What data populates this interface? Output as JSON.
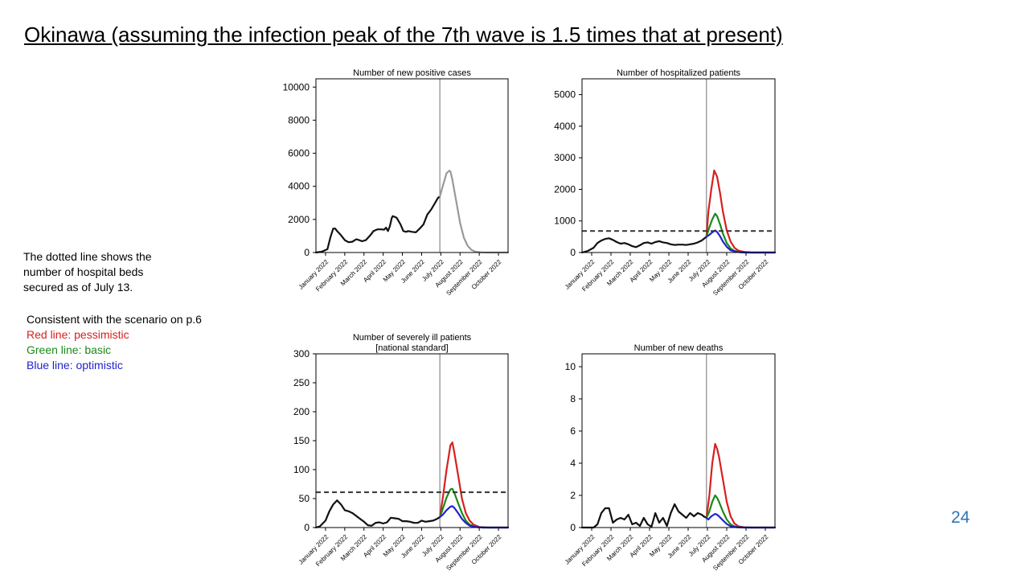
{
  "slide": {
    "title": "Okinawa (assuming the infection peak of the 7th wave is 1.5 times that at present)",
    "page_number": "24"
  },
  "note": {
    "lines": [
      "The dotted line shows the",
      "number of hospital beds",
      "secured as of July 13."
    ]
  },
  "legend": {
    "intro": "Consistent with the scenario on p.6",
    "red": "Red line: pessimistic",
    "green": "Green line: basic",
    "blue": "Blue line: optimistic",
    "colors": {
      "red": "#d62020",
      "green": "#1a8a1a",
      "blue": "#2222cc",
      "actual": "#111111",
      "projection_gray": "#999999"
    }
  },
  "chart_data": [
    {
      "id": "new-positive-cases",
      "type": "line",
      "title": "Number of new positive cases",
      "xlabel": "",
      "ylabel": "",
      "ylim": [
        0,
        10500
      ],
      "yticks": [
        0,
        2000,
        4000,
        6000,
        8000,
        10000
      ],
      "xlim": [
        0,
        10
      ],
      "xticks": [
        "January 2022",
        "February 2022",
        "March 2022",
        "April 2022",
        "May 2022",
        "June 2022",
        "July 2022",
        "August 2022",
        "September 2022",
        "October 2022"
      ],
      "today": 6.45,
      "bed_line": null,
      "series": [
        {
          "name": "actual",
          "color": "#111111",
          "x": [
            0,
            0.3,
            0.6,
            0.75,
            0.9,
            1.0,
            1.1,
            1.3,
            1.5,
            1.7,
            1.9,
            2.1,
            2.25,
            2.4,
            2.6,
            2.8,
            3.0,
            3.2,
            3.4,
            3.55,
            3.65,
            3.75,
            3.85,
            3.95,
            4.0,
            4.2,
            4.4,
            4.55,
            4.7,
            4.8,
            5.0,
            5.2,
            5.4,
            5.6,
            5.8,
            6.0,
            6.2,
            6.35,
            6.45
          ],
          "y": [
            0,
            50,
            200,
            900,
            1450,
            1450,
            1300,
            1050,
            750,
            620,
            650,
            800,
            750,
            680,
            750,
            1000,
            1300,
            1400,
            1400,
            1380,
            1500,
            1300,
            1600,
            2100,
            2200,
            2100,
            1700,
            1300,
            1250,
            1300,
            1250,
            1220,
            1450,
            1700,
            2300,
            2600,
            3000,
            3300,
            3400
          ]
        },
        {
          "name": "projection",
          "color": "#999999",
          "x": [
            6.45,
            6.6,
            6.8,
            6.95,
            7.0,
            7.1,
            7.3,
            7.5,
            7.7,
            7.9,
            8.1,
            8.3,
            8.6,
            9.0,
            10.0
          ],
          "y": [
            3400,
            4000,
            4800,
            4950,
            4900,
            4400,
            3100,
            1800,
            900,
            400,
            150,
            50,
            10,
            0,
            0
          ]
        }
      ]
    },
    {
      "id": "hospitalized-patients",
      "type": "line",
      "title": "Number of hospitalized patients",
      "xlabel": "",
      "ylabel": "",
      "ylim": [
        0,
        5500
      ],
      "yticks": [
        0,
        1000,
        2000,
        3000,
        4000,
        5000
      ],
      "xlim": [
        0,
        10
      ],
      "xticks": [
        "January 2022",
        "February 2022",
        "March 2022",
        "April 2022",
        "May 2022",
        "June 2022",
        "July 2022",
        "August 2022",
        "September 2022",
        "October 2022"
      ],
      "today": 6.45,
      "bed_line": 680,
      "series": [
        {
          "name": "actual",
          "color": "#111111",
          "x": [
            0,
            0.3,
            0.6,
            0.8,
            1.0,
            1.2,
            1.4,
            1.6,
            1.8,
            2.0,
            2.2,
            2.4,
            2.6,
            2.8,
            3.0,
            3.2,
            3.4,
            3.6,
            3.8,
            4.0,
            4.2,
            4.4,
            4.6,
            4.8,
            5.0,
            5.2,
            5.4,
            5.6,
            5.8,
            6.0,
            6.2,
            6.45
          ],
          "y": [
            0,
            50,
            150,
            300,
            380,
            430,
            450,
            400,
            330,
            280,
            300,
            260,
            200,
            170,
            230,
            300,
            320,
            280,
            330,
            360,
            320,
            300,
            260,
            240,
            250,
            250,
            240,
            260,
            280,
            320,
            380,
            500
          ]
        },
        {
          "name": "pessimistic",
          "color": "#d62020",
          "x": [
            6.45,
            6.55,
            6.7,
            6.85,
            7.0,
            7.15,
            7.3,
            7.5,
            7.7,
            7.9,
            8.1,
            8.4,
            8.8,
            10.0
          ],
          "y": [
            500,
            1300,
            2000,
            2600,
            2400,
            1900,
            1300,
            700,
            350,
            150,
            60,
            20,
            0,
            0
          ]
        },
        {
          "name": "basic",
          "color": "#1a8a1a",
          "x": [
            6.45,
            6.6,
            6.75,
            6.9,
            7.0,
            7.15,
            7.3,
            7.5,
            7.7,
            7.9,
            8.2,
            8.6,
            10.0
          ],
          "y": [
            500,
            800,
            1050,
            1230,
            1150,
            900,
            600,
            300,
            130,
            50,
            10,
            0,
            0
          ]
        },
        {
          "name": "optimistic",
          "color": "#2222cc",
          "x": [
            6.45,
            6.6,
            6.75,
            6.9,
            7.0,
            7.15,
            7.3,
            7.5,
            7.7,
            8.0,
            8.4,
            10.0
          ],
          "y": [
            500,
            560,
            640,
            700,
            650,
            520,
            350,
            180,
            70,
            20,
            0,
            0
          ]
        }
      ]
    },
    {
      "id": "severely-ill-patients",
      "type": "line",
      "title": "Number of severely ill patients\n[national standard]",
      "xlabel": "",
      "ylabel": "",
      "ylim": [
        0,
        300
      ],
      "yticks": [
        0,
        50,
        100,
        150,
        200,
        250,
        300
      ],
      "xlim": [
        0,
        10
      ],
      "xticks": [
        "January 2022",
        "February 2022",
        "March 2022",
        "April 2022",
        "May 2022",
        "June 2022",
        "July 2022",
        "August 2022",
        "September 2022",
        "October 2022"
      ],
      "today": 6.45,
      "bed_line": 61,
      "series": [
        {
          "name": "actual",
          "color": "#111111",
          "x": [
            0,
            0.2,
            0.5,
            0.7,
            0.9,
            1.1,
            1.3,
            1.5,
            1.7,
            1.9,
            2.1,
            2.3,
            2.5,
            2.7,
            2.9,
            3.1,
            3.3,
            3.5,
            3.7,
            3.9,
            4.1,
            4.3,
            4.5,
            4.7,
            4.9,
            5.1,
            5.3,
            5.5,
            5.7,
            5.9,
            6.1,
            6.3,
            6.45
          ],
          "y": [
            0,
            2,
            12,
            28,
            40,
            47,
            40,
            30,
            28,
            25,
            20,
            15,
            10,
            4,
            3,
            8,
            9,
            7,
            9,
            17,
            16,
            15,
            11,
            11,
            10,
            8,
            8,
            12,
            10,
            11,
            12,
            15,
            18
          ]
        },
        {
          "name": "pessimistic",
          "color": "#d62020",
          "x": [
            6.45,
            6.6,
            6.8,
            7.0,
            7.1,
            7.2,
            7.4,
            7.6,
            7.8,
            8.0,
            8.2,
            8.5,
            9.0,
            10.0
          ],
          "y": [
            18,
            50,
            100,
            142,
            147,
            130,
            90,
            50,
            25,
            12,
            5,
            1,
            0,
            0
          ]
        },
        {
          "name": "basic",
          "color": "#1a8a1a",
          "x": [
            6.45,
            6.6,
            6.8,
            7.0,
            7.1,
            7.2,
            7.4,
            7.6,
            7.8,
            8.0,
            8.3,
            8.7,
            10.0
          ],
          "y": [
            18,
            32,
            52,
            66,
            67,
            60,
            42,
            25,
            12,
            5,
            1,
            0,
            0
          ]
        },
        {
          "name": "optimistic",
          "color": "#2222cc",
          "x": [
            6.45,
            6.6,
            6.8,
            7.0,
            7.1,
            7.2,
            7.4,
            7.6,
            7.8,
            8.0,
            8.3,
            8.7,
            10.0
          ],
          "y": [
            18,
            22,
            30,
            36,
            37,
            34,
            25,
            15,
            8,
            3,
            1,
            0,
            0
          ]
        }
      ]
    },
    {
      "id": "new-deaths",
      "type": "line",
      "title": "Number of new deaths",
      "xlabel": "",
      "ylabel": "",
      "ylim": [
        0,
        10.8
      ],
      "yticks": [
        0,
        2,
        4,
        6,
        8,
        10
      ],
      "xlim": [
        0,
        10
      ],
      "xticks": [
        "January 2022",
        "February 2022",
        "March 2022",
        "April 2022",
        "May 2022",
        "June 2022",
        "July 2022",
        "August 2022",
        "September 2022",
        "October 2022"
      ],
      "today": 6.45,
      "bed_line": null,
      "series": [
        {
          "name": "actual",
          "color": "#111111",
          "x": [
            0,
            0.6,
            0.8,
            1.0,
            1.2,
            1.4,
            1.6,
            1.8,
            2.0,
            2.2,
            2.4,
            2.6,
            2.8,
            3.0,
            3.2,
            3.4,
            3.6,
            3.8,
            4.0,
            4.2,
            4.4,
            4.6,
            4.8,
            5.0,
            5.2,
            5.4,
            5.6,
            5.8,
            6.0,
            6.2,
            6.3,
            6.45
          ],
          "y": [
            0,
            0,
            0.2,
            0.9,
            1.2,
            1.2,
            0.3,
            0.5,
            0.6,
            0.5,
            0.8,
            0.2,
            0.3,
            0.1,
            0.6,
            0.2,
            0.05,
            0.9,
            0.3,
            0.6,
            0.1,
            0.9,
            1.45,
            1.0,
            0.8,
            0.6,
            0.9,
            0.7,
            0.9,
            0.8,
            0.7,
            0.6
          ]
        },
        {
          "name": "pessimistic",
          "color": "#d62020",
          "x": [
            6.45,
            6.6,
            6.75,
            6.9,
            7.0,
            7.1,
            7.3,
            7.5,
            7.7,
            7.9,
            8.1,
            8.4,
            8.8,
            10.0
          ],
          "y": [
            0.6,
            2.0,
            4.0,
            5.2,
            4.9,
            4.4,
            3.0,
            1.6,
            0.7,
            0.25,
            0.08,
            0.02,
            0,
            0
          ]
        },
        {
          "name": "basic",
          "color": "#1a8a1a",
          "x": [
            6.45,
            6.6,
            6.75,
            6.9,
            7.0,
            7.1,
            7.3,
            7.5,
            7.7,
            7.9,
            8.2,
            8.6,
            10.0
          ],
          "y": [
            0.6,
            1.0,
            1.6,
            2.0,
            1.85,
            1.6,
            1.0,
            0.5,
            0.2,
            0.07,
            0.01,
            0,
            0
          ]
        },
        {
          "name": "optimistic",
          "color": "#2222cc",
          "x": [
            6.45,
            6.55,
            6.7,
            6.9,
            7.0,
            7.1,
            7.3,
            7.5,
            7.7,
            8.0,
            8.4,
            10.0
          ],
          "y": [
            0.6,
            0.5,
            0.7,
            0.85,
            0.8,
            0.7,
            0.45,
            0.22,
            0.08,
            0.02,
            0,
            0
          ]
        }
      ]
    }
  ]
}
